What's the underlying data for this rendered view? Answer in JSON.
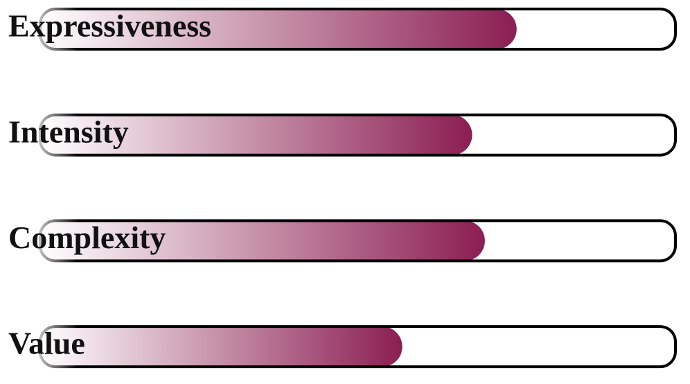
{
  "chart_data": {
    "type": "bar",
    "orientation": "horizontal",
    "categories": [
      "Expressiveness",
      "Intensity",
      "Complexity",
      "Value"
    ],
    "values": [
      75,
      68,
      70,
      57
    ],
    "color": "#8b1e52",
    "xlim": [
      0,
      100
    ]
  }
}
